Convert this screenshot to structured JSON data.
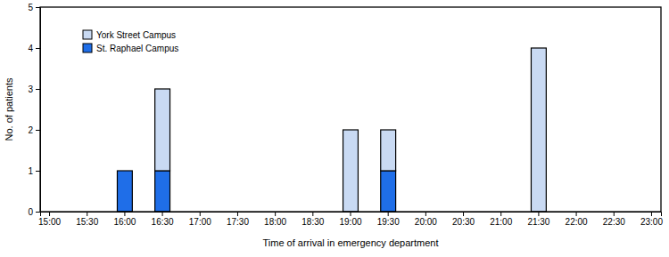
{
  "chart_data": {
    "type": "bar",
    "stacked": true,
    "x_label": "Time of arrival in emergency department",
    "y_label": "No. of patients",
    "categories": [
      "15:00",
      "15:30",
      "16:00",
      "16:30",
      "17:00",
      "17:30",
      "18:00",
      "18:30",
      "19:00",
      "19:30",
      "20:00",
      "20:30",
      "21:00",
      "21:30",
      "22:00",
      "22:30",
      "23:00"
    ],
    "series": [
      {
        "name": "St. Raphael Campus",
        "color": "#1f6ee8",
        "values": [
          0,
          0,
          1,
          1,
          0,
          0,
          0,
          0,
          0,
          1,
          0,
          0,
          0,
          0,
          0,
          0,
          0
        ]
      },
      {
        "name": "York Street Campus",
        "color": "#c9daf3",
        "values": [
          0,
          0,
          0,
          2,
          0,
          0,
          0,
          0,
          2,
          1,
          0,
          0,
          0,
          4,
          0,
          0,
          0
        ]
      }
    ],
    "ylim": [
      0,
      5
    ],
    "yticks": [
      0,
      1,
      2,
      3,
      4,
      5
    ],
    "legend": "upper left",
    "grid": false
  }
}
